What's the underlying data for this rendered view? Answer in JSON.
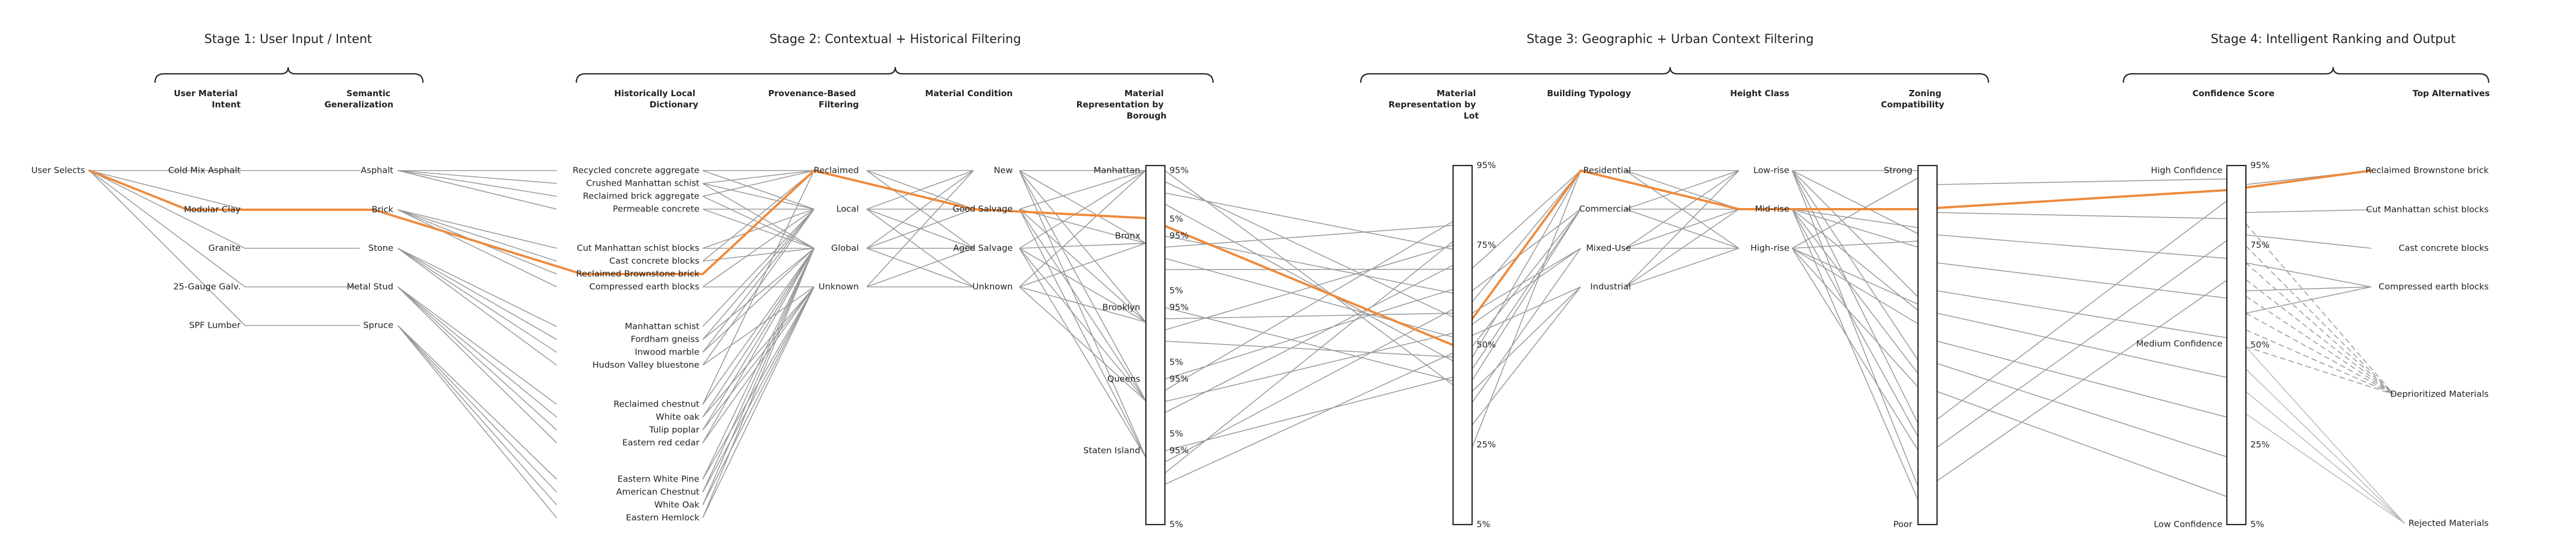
{
  "stages": [
    "Stage 1: User Input / Intent",
    "Stage 2: Contextual + Historical Filtering",
    "Stage 3: Geographic + Urban Context Filtering",
    "Stage 4: Intelligent Ranking and Output"
  ],
  "columns": {
    "user_intent": [
      "User Material",
      "Intent"
    ],
    "semantic": [
      "Semantic",
      "Generalization"
    ],
    "dictionary": [
      "Historically Local",
      "Dictionary"
    ],
    "provenance": [
      "Provenance-Based",
      "Filtering"
    ],
    "condition": [
      "Material Condition"
    ],
    "borough": [
      "Material",
      "Representation by",
      "Borough"
    ],
    "lot": [
      "Material",
      "Representation by",
      "Lot"
    ],
    "typology": [
      "Building Typology"
    ],
    "height": [
      "Height Class"
    ],
    "zoning": [
      "Zoning",
      "Compatibility"
    ],
    "confidence": [
      "Confidence Score"
    ],
    "alternatives": [
      "Top Alternatives"
    ]
  },
  "nodes": {
    "start": "User Selects",
    "user_intent": [
      "Cold Mix Asphalt",
      "Modular Clay",
      "Granite",
      "25-Gauge Galv.",
      "SPF Lumber"
    ],
    "semantic": [
      "Asphalt",
      "Brick",
      "Stone",
      "Metal Stud",
      "Spruce"
    ],
    "dictionary": [
      "Recycled concrete aggregate",
      "Crushed Manhattan schist",
      "Reclaimed brick aggregate",
      "Permeable concrete",
      "Cut Manhattan schist blocks",
      "Cast concrete blocks",
      "Reclaimed Brownstone brick",
      "Compressed earth blocks",
      "Manhattan schist",
      "Fordham gneiss",
      "Inwood marble",
      "Hudson Valley bluestone",
      "Reclaimed chestnut",
      "White oak",
      "Tulip poplar",
      "Eastern red cedar",
      "Eastern White Pine",
      "American Chestnut",
      "White Oak",
      "Eastern Hemlock"
    ],
    "provenance": [
      "Reclaimed",
      "Local",
      "Global",
      "Unknown"
    ],
    "condition": [
      "New",
      "Good Salvage",
      "Aged Salvage",
      "Unknown"
    ],
    "boroughs": [
      "Manhattan",
      "Bronx",
      "Brooklyn",
      "Queens",
      "Staten Island"
    ],
    "typology": [
      "Residential",
      "Commercial",
      "Mixed-Use",
      "Industrial"
    ],
    "height": [
      "Low-rise",
      "Mid-rise",
      "High-rise"
    ],
    "zoning": [
      "Strong",
      "Poor"
    ],
    "confidence": [
      "High Confidence",
      "Medium Confidence",
      "Low Confidence"
    ],
    "alternatives": [
      "Reclaimed Brownstone brick",
      "Cut Manhattan schist blocks",
      "Cast concrete blocks",
      "Compressed earth blocks",
      "Deprioritized Materials",
      "Rejected Materials"
    ]
  },
  "axis_labels": {
    "borough_scale": [
      "95%",
      "5%"
    ],
    "lot_scale": [
      "95%",
      "75%",
      "50%",
      "25%",
      "5%"
    ],
    "confidence_scale": [
      "95%",
      "75%",
      "50%",
      "25%",
      "5%"
    ]
  },
  "colors": {
    "highlight": "#ee8a3c",
    "flow": "#999999",
    "flow_light": "#bbbbbb",
    "text": "#222222"
  }
}
